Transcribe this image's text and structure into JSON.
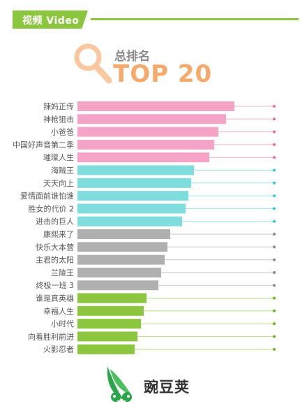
{
  "header": {
    "label": "视频 Video"
  },
  "title": {
    "subtitle": "总排名",
    "main": "TOP 20"
  },
  "logo": {
    "text": "豌豆荚"
  },
  "colors": {
    "accent": "#8cc63f",
    "title": "#f6a96a",
    "pink": "#f6a3c8",
    "cyan": "#7fdedd",
    "gray": "#b0b0b0",
    "green": "#8cc63f"
  },
  "chart_data": {
    "type": "bar",
    "orientation": "horizontal",
    "categories": [
      "辣妈正传",
      "神枪狙击",
      "小爸爸",
      "中国好声音第二季",
      "璀璨人生",
      "海贼王",
      "天天向上",
      "爱情面前谁怕谁",
      "胜女的代价 2",
      "进击的巨人",
      "康熙来了",
      "快乐大本营",
      "主君的太阳",
      "兰陵王",
      "终极一班 3",
      "谁是真英雄",
      "幸福人生",
      "小时代",
      "向着胜利前进",
      "火影忍者"
    ],
    "values": [
      20,
      19,
      18,
      17,
      16,
      15,
      14,
      13,
      12,
      11,
      10,
      9,
      8,
      7,
      6,
      5,
      4,
      3,
      2,
      1
    ],
    "bar_lengths": [
      225,
      213,
      202,
      196,
      189,
      167,
      163,
      159,
      155,
      150,
      133,
      129,
      125,
      120,
      116,
      99,
      95,
      91,
      86,
      82
    ],
    "groups": [
      "pink",
      "pink",
      "pink",
      "pink",
      "pink",
      "cyan",
      "cyan",
      "cyan",
      "cyan",
      "cyan",
      "gray",
      "gray",
      "gray",
      "gray",
      "gray",
      "green",
      "green",
      "green",
      "green",
      "green"
    ],
    "group_colors": {
      "pink": "#f6a3c8",
      "cyan": "#7fdedd",
      "gray": "#b0b0b0",
      "green": "#8cc63f"
    },
    "dot_colors": {
      "pink": "#f06a9c",
      "cyan": "#3cc6d0",
      "gray": "#8a8a8a",
      "green": "#6db52a"
    },
    "line_colors": {
      "pink": "#f4b4cc",
      "cyan": "#9ee2e6",
      "gray": "#c8c8c8",
      "green": "#b6dc86"
    },
    "title": "TOP 20",
    "xlabel": "",
    "ylabel": ""
  }
}
